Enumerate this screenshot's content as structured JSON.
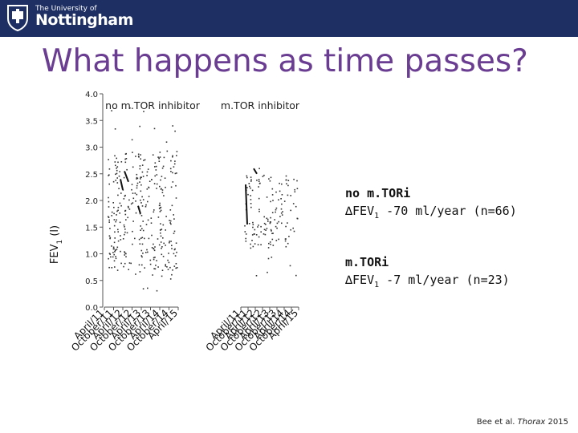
{
  "header": {
    "university_small": "The University of",
    "university_big": "Nottingham"
  },
  "slide": {
    "title": "What happens as time passes?"
  },
  "annotations": {
    "no_mtori_heading": "no m.TORi",
    "no_mtori_delta": "∆FEV",
    "no_mtori_sub": "1",
    "no_mtori_value": " -70 ml/year (n=66)",
    "mtori_heading": "m.TORi",
    "mtori_delta": "∆FEV",
    "mtori_sub": "1",
    "mtori_value": " -7 ml/year (n=23)"
  },
  "citation": {
    "authors": "Bee et al. ",
    "journal": "Thorax",
    "year": " 2015"
  },
  "chart_data": {
    "type": "scatter",
    "ylabel": "FEV1 (l)",
    "ylabel_main": "FEV",
    "ylabel_sub": "1",
    "ylabel_unit": " (l)",
    "ylim": [
      0,
      4
    ],
    "yticks": [
      "0.0",
      "0.5",
      "1.0",
      "1.5",
      "2.0",
      "2.5",
      "3.0",
      "3.5",
      "4.0"
    ],
    "legend": "none",
    "grid": false,
    "panels": [
      {
        "label": "no m.TOR inhibitor",
        "date_ticks": [
          "April/11",
          "October/11",
          "April/12",
          "October/12",
          "April/13",
          "October/13",
          "April/14",
          "October/14",
          "April/15"
        ],
        "n_patients": 66,
        "trend_ml_per_year": -70,
        "fev1_range": [
          0.3,
          3.8
        ]
      },
      {
        "label": "m.TOR inhibitor",
        "date_ticks": [
          "April/11",
          "October/11",
          "April/12",
          "October/12",
          "April/13",
          "October/13",
          "April/14",
          "October/14",
          "April/15"
        ],
        "n_patients": 23,
        "trend_ml_per_year": -7,
        "fev1_range": [
          0.6,
          2.7
        ]
      }
    ]
  }
}
